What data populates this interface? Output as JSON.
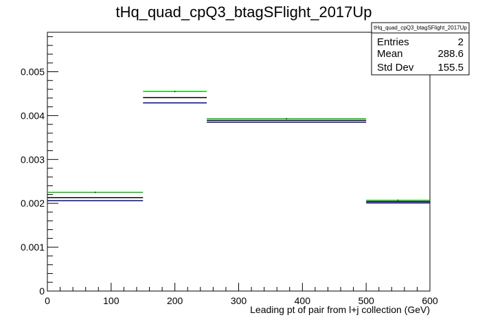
{
  "chart_data": {
    "type": "histogram",
    "title": "tHq_quad_cpQ3_btagSFlight_2017Up",
    "xlabel": "Leading pt of pair from l+j collection (GeV)",
    "ylabel": "",
    "xlim": [
      0,
      600
    ],
    "ylim": [
      0,
      0.0059
    ],
    "x_ticks": [
      "0",
      "100",
      "200",
      "300",
      "400",
      "500",
      "600"
    ],
    "y_ticks": [
      "0",
      "0.001",
      "0.002",
      "0.003",
      "0.004",
      "0.005"
    ],
    "bin_edges": [
      0,
      150,
      250,
      500,
      600
    ],
    "series": [
      {
        "color": "#00cc00",
        "values": [
          0.00225,
          0.00455,
          0.00393,
          0.00207
        ]
      },
      {
        "color": "#000000",
        "values": [
          0.00213,
          0.00441,
          0.00389,
          0.00204
        ]
      },
      {
        "color": "#000099",
        "values": [
          0.00206,
          0.00429,
          0.00385,
          0.00201
        ]
      }
    ],
    "stats": {
      "name": "tHq_quad_cpQ3_btagSFlight_2017Up",
      "rows": [
        {
          "label": "Entries",
          "value": "2"
        },
        {
          "label": "Mean",
          "value": "288.6"
        },
        {
          "label": "Std Dev",
          "value": "155.5"
        }
      ]
    }
  }
}
